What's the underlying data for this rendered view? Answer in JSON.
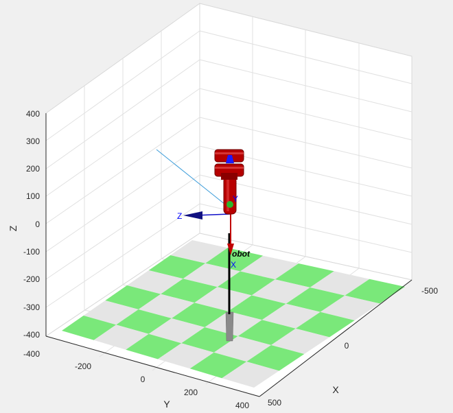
{
  "figure": {
    "background": "#f0f0f0",
    "pane_color": "#ffffff",
    "grid_color": "#dedede",
    "floor_colors": [
      "#e5e5e5",
      "#7ae87a"
    ]
  },
  "axes": {
    "x": {
      "label": "X",
      "ticks": [
        {
          "label": "-500"
        },
        {
          "label": "0"
        },
        {
          "label": "500"
        }
      ]
    },
    "y": {
      "label": "Y",
      "ticks": [
        {
          "label": "-400"
        },
        {
          "label": "-200"
        },
        {
          "label": "0"
        },
        {
          "label": "200"
        },
        {
          "label": "400"
        }
      ]
    },
    "z": {
      "label": "Z",
      "ticks": [
        {
          "label": "400"
        },
        {
          "label": "300"
        },
        {
          "label": "200"
        },
        {
          "label": "100"
        },
        {
          "label": "0"
        },
        {
          "label": "-100"
        },
        {
          "label": "-200"
        },
        {
          "label": "-300"
        },
        {
          "label": "-400"
        }
      ]
    }
  },
  "robot": {
    "name": "robot",
    "name_visible": "obot",
    "link_color": "#c00000",
    "joint_color": "#1a1aff",
    "frame": {
      "z_label": "Z",
      "x_label": "X",
      "y_label": "Y"
    }
  }
}
